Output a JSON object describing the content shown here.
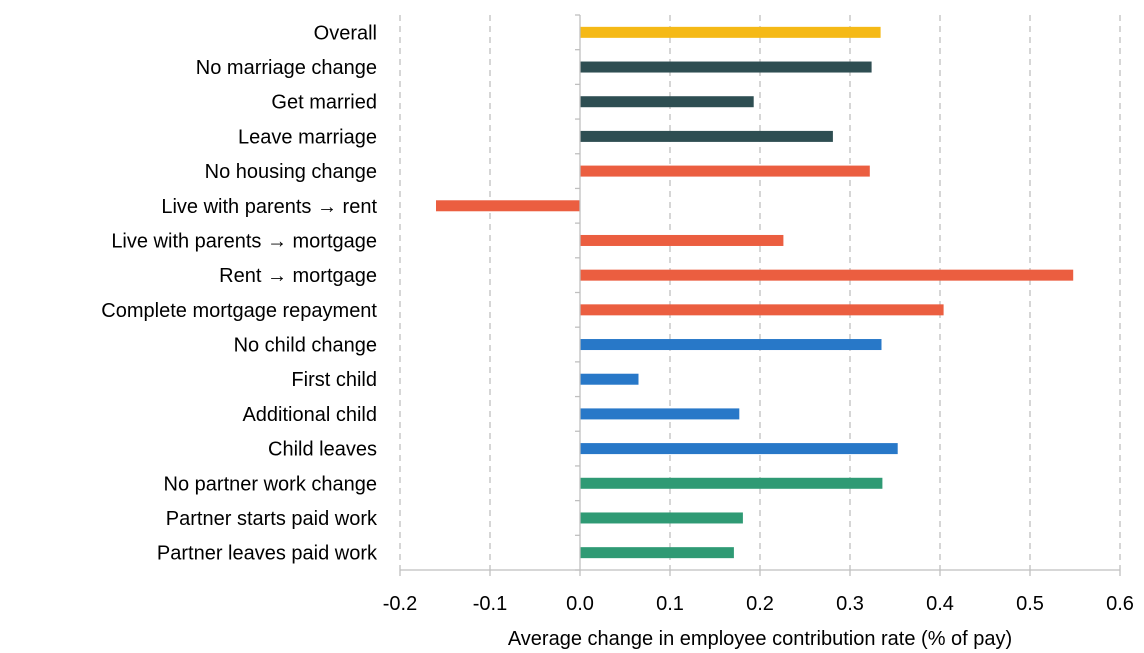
{
  "chart_data": {
    "type": "bar",
    "orientation": "horizontal",
    "xlabel": "Average change in employee contribution rate (% of pay)",
    "xlim": [
      -0.2,
      0.6
    ],
    "xticks": [
      -0.2,
      -0.1,
      0.0,
      0.1,
      0.2,
      0.3,
      0.4,
      0.5,
      0.6
    ],
    "xtick_labels": [
      "-0.2",
      "-0.1",
      "0.0",
      "0.1",
      "0.2",
      "0.3",
      "0.4",
      "0.5",
      "0.6"
    ],
    "grid": "vertical-dashed",
    "categories": [
      "Overall",
      "No marriage change",
      "Get married",
      "Leave marriage",
      "No housing change",
      "Live with parents → rent",
      "Live with parents → mortgage",
      "Rent → mortgage",
      "Complete mortgage repayment",
      "No child change",
      "First child",
      "Additional child",
      "Child leaves",
      "No partner work change",
      "Partner starts paid work",
      "Partner leaves paid work"
    ],
    "values": [
      0.334,
      0.324,
      0.193,
      0.281,
      0.322,
      -0.16,
      0.226,
      0.548,
      0.404,
      0.335,
      0.065,
      0.177,
      0.353,
      0.336,
      0.181,
      0.171
    ],
    "bar_colors": [
      "#F5B916",
      "#2E4E52",
      "#2E4E52",
      "#2E4E52",
      "#EB5E40",
      "#EB5E40",
      "#EB5E40",
      "#EB5E40",
      "#EB5E40",
      "#2878C8",
      "#2878C8",
      "#2878C8",
      "#2878C8",
      "#2F9A74",
      "#2F9A74",
      "#2F9A74"
    ]
  }
}
